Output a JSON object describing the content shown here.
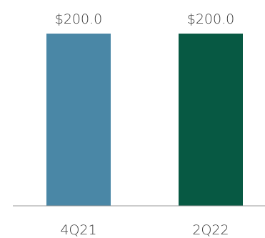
{
  "chart_data": {
    "type": "bar",
    "categories": [
      "4Q21",
      "2Q22"
    ],
    "values": [
      200.0,
      200.0
    ],
    "data_labels": [
      "$200.0",
      "$200.0"
    ],
    "bar_colors": [
      "#4a87a6",
      "#075943"
    ],
    "axis_color": "#9a9a9a",
    "title": "",
    "xlabel": "",
    "ylabel": "",
    "ylim": [
      0,
      200
    ],
    "grid": false,
    "legend": "none"
  }
}
